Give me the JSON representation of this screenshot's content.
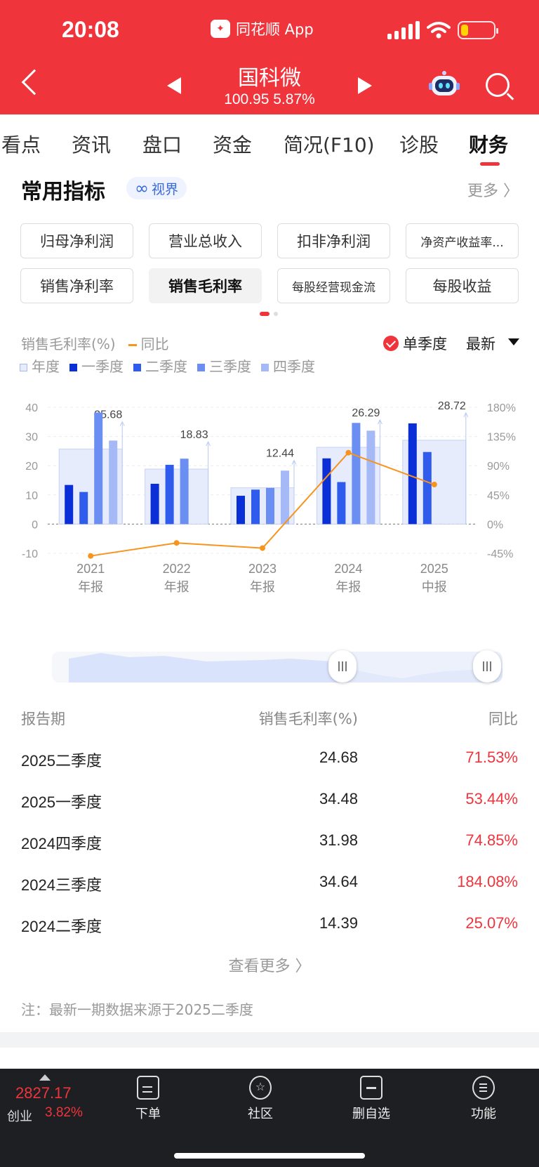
{
  "status_bar": {
    "time": "20:08",
    "app_name": "同花顺 App"
  },
  "stock": {
    "name": "国科微",
    "quote": "100.95 5.87%"
  },
  "tabs": [
    "看点",
    "资讯",
    "盘口",
    "资金",
    "简况(F10)",
    "诊股",
    "财务"
  ],
  "active_tab": "财务",
  "section": {
    "title": "常用指标",
    "badge": "视界",
    "more": "更多 〉"
  },
  "chips": [
    "归母净利润",
    "营业总收入",
    "扣非净利润",
    "净资产收益率...",
    "销售净利率",
    "销售毛利率",
    "每股经营现金流",
    "每股收益"
  ],
  "active_chip": "销售毛利率",
  "legend": {
    "metric": "销售毛利率(%)",
    "yoy": "同比",
    "annual": "年度",
    "q1": "一季度",
    "q2": "二季度",
    "q3": "三季度",
    "q4": "四季度",
    "single_quarter": "单季度",
    "latest": "最新"
  },
  "colors": {
    "brand_red": "#f0343c",
    "q1": "#0b2fd6",
    "q2": "#2f5cec",
    "q3": "#6b8ef3",
    "q4": "#a4b9f6",
    "annual_fill": "#e6ecfc",
    "yoy_line": "#f7941d"
  },
  "chart_data": {
    "type": "bar",
    "categories": [
      "2021\n年报",
      "2022\n年报",
      "2023\n年报",
      "2024\n年报",
      "2025\n中报"
    ],
    "annual": [
      25.68,
      18.83,
      12.44,
      26.29,
      28.72
    ],
    "series": [
      {
        "name": "一季度",
        "values": [
          13.4,
          13.8,
          9.7,
          22.5,
          34.48
        ]
      },
      {
        "name": "二季度",
        "values": [
          11.0,
          20.3,
          11.8,
          14.39,
          24.68
        ]
      },
      {
        "name": "三季度",
        "values": [
          38.2,
          22.4,
          12.4,
          34.64,
          null
        ]
      },
      {
        "name": "四季度",
        "values": [
          28.6,
          null,
          18.3,
          31.98,
          null
        ]
      }
    ],
    "yoy": [
      -49,
      -29,
      -37,
      110,
      61
    ],
    "yticks_left": [
      "40",
      "30",
      "20",
      "10",
      "0",
      "-10"
    ],
    "yticks_right": [
      "180%",
      "135%",
      "90%",
      "45%",
      "0%",
      "-45%"
    ],
    "ylim": [
      -10,
      40
    ],
    "ylim_right": [
      -45,
      180
    ]
  },
  "table": {
    "headers": [
      "报告期",
      "销售毛利率(%)",
      "同比"
    ],
    "rows": [
      {
        "period": "2025二季度",
        "value": "24.68",
        "yoy": "71.53%"
      },
      {
        "period": "2025一季度",
        "value": "34.48",
        "yoy": "53.44%"
      },
      {
        "period": "2024四季度",
        "value": "31.98",
        "yoy": "74.85%"
      },
      {
        "period": "2024三季度",
        "value": "34.64",
        "yoy": "184.08%"
      },
      {
        "period": "2024二季度",
        "value": "14.39",
        "yoy": "25.07%"
      }
    ],
    "view_more": "查看更多 〉",
    "note": "注：最新一期数据来源于2025二季度"
  },
  "bottom_bar": {
    "index_value": "2827.17",
    "index_name": "创业",
    "index_pct": "3.82%",
    "items": [
      "下单",
      "社区",
      "删自选",
      "功能"
    ]
  }
}
